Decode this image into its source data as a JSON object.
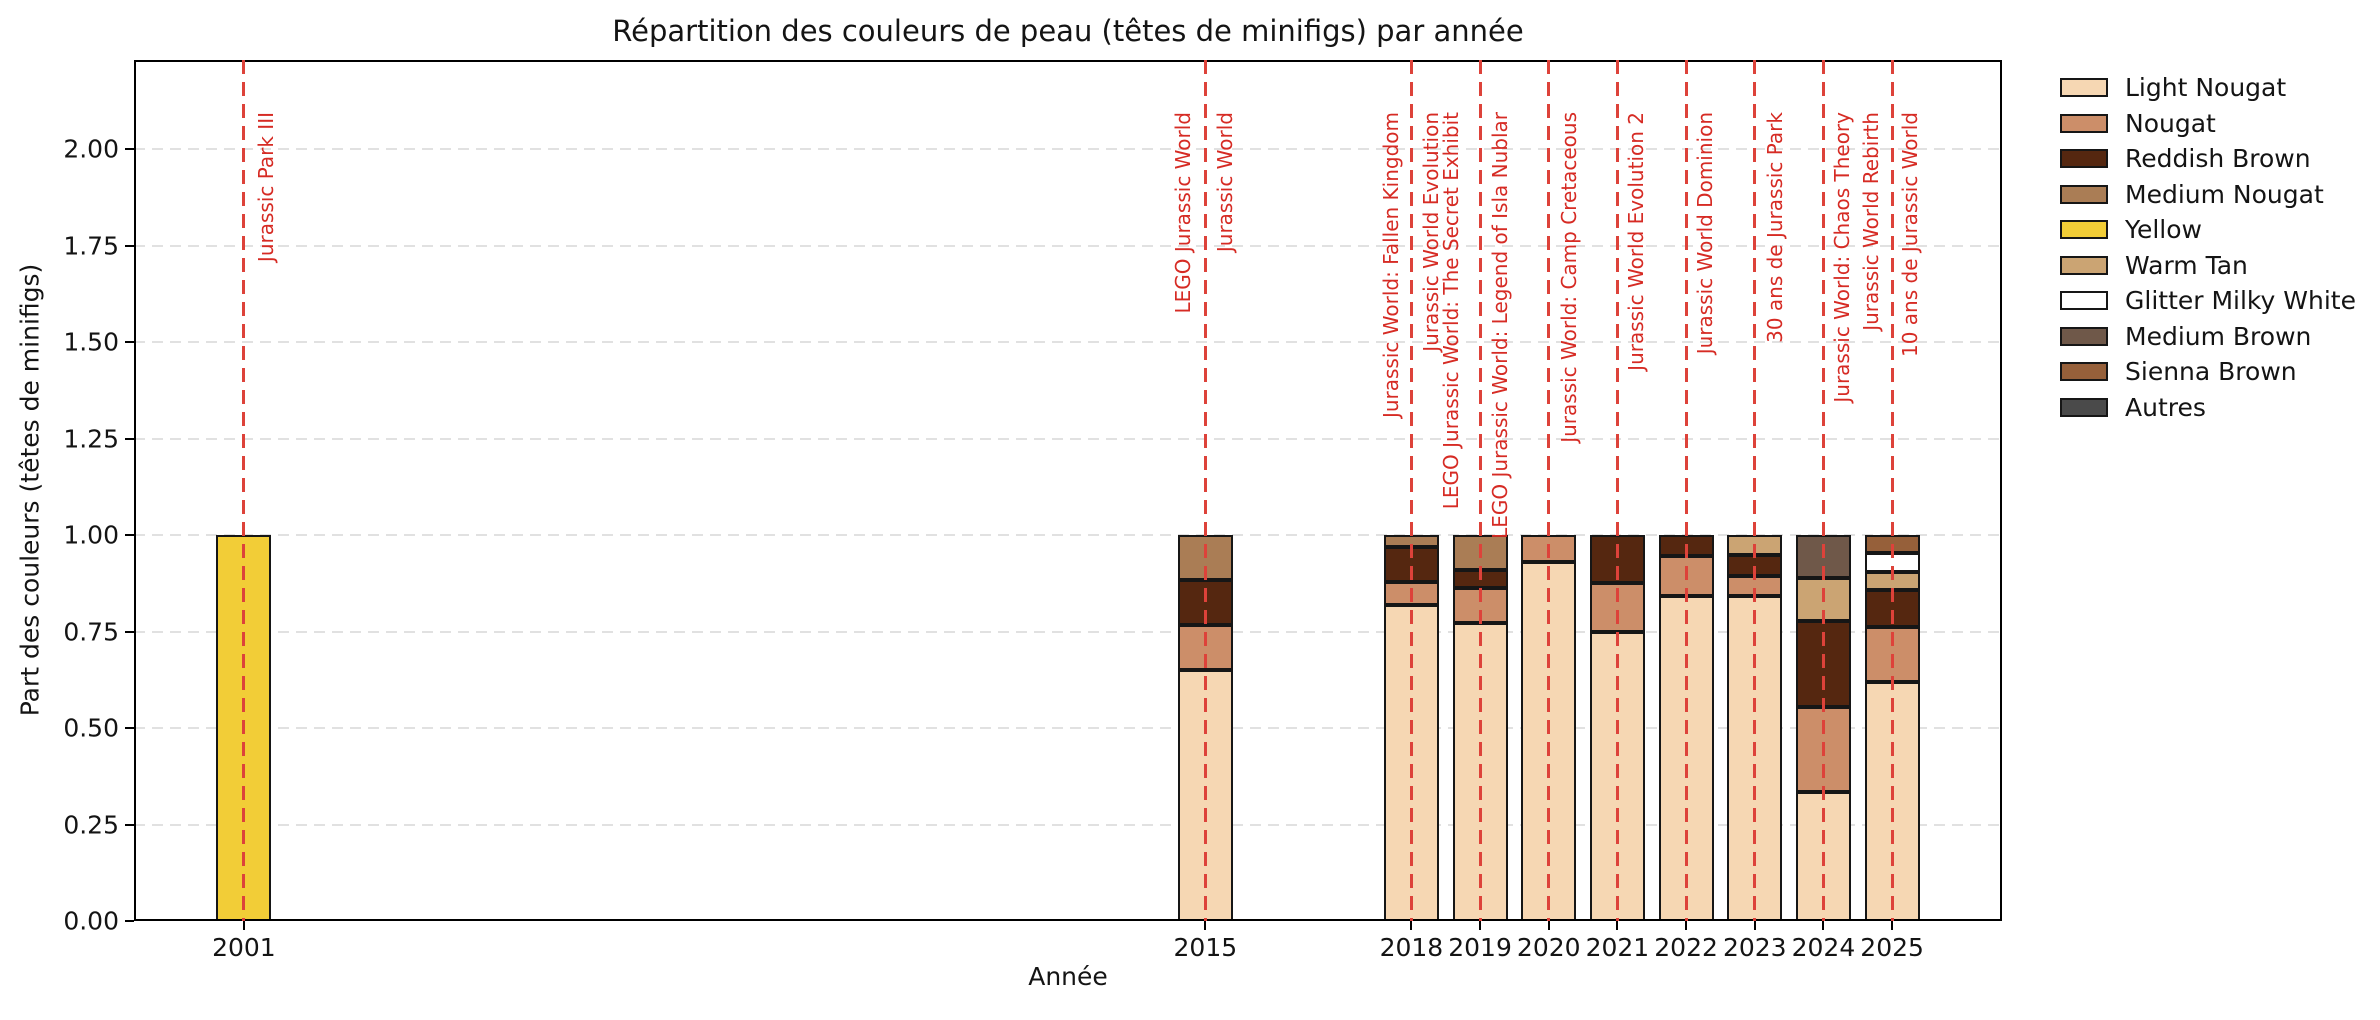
{
  "chart_data": {
    "type": "bar",
    "stacked": true,
    "title": "Répartition des couleurs de peau (têtes de minifigs) par année",
    "xlabel": "Année",
    "ylabel": "Part des couleurs (têtes de minifigs)",
    "categories": [
      "2001",
      "2015",
      "2018",
      "2019",
      "2020",
      "2021",
      "2022",
      "2023",
      "2024",
      "2025"
    ],
    "category_years": [
      2001,
      2015,
      2018,
      2019,
      2020,
      2021,
      2022,
      2023,
      2024,
      2025
    ],
    "xlim": [
      1999.4,
      2026.6
    ],
    "ylim": [
      0,
      2.231
    ],
    "yticks": [
      "0.00",
      "0.25",
      "0.50",
      "0.75",
      "1.00",
      "1.25",
      "1.50",
      "1.75",
      "2.00"
    ],
    "ytick_values": [
      0,
      0.25,
      0.5,
      0.75,
      1.0,
      1.25,
      1.5,
      1.75,
      2.0
    ],
    "bar_width_years": 0.8,
    "grid": "horizontal dashed",
    "legend_position": "outside-right",
    "series": [
      {
        "name": "Light Nougat",
        "color": "#F6D7B3",
        "values": [
          0,
          0.65,
          0.818,
          0.773,
          0.929,
          0.75,
          0.842,
          0.842,
          0.333,
          0.619
        ]
      },
      {
        "name": "Nougat",
        "color": "#CC8E69",
        "values": [
          0,
          0.117,
          0.061,
          0.091,
          0.071,
          0.125,
          0.105,
          0.053,
          0.222,
          0.143
        ]
      },
      {
        "name": "Reddish Brown",
        "color": "#552710",
        "values": [
          0,
          0.116,
          0.091,
          0.045,
          0,
          0.125,
          0.053,
          0.053,
          0.222,
          0.095
        ]
      },
      {
        "name": "Medium Nougat",
        "color": "#AA7D55",
        "values": [
          0,
          0.117,
          0.03,
          0.091,
          0,
          0,
          0,
          0,
          0,
          0
        ]
      },
      {
        "name": "Yellow",
        "color": "#F2CD37",
        "values": [
          1.0,
          0,
          0,
          0,
          0,
          0,
          0,
          0,
          0,
          0
        ]
      },
      {
        "name": "Warm Tan",
        "color": "#CBA473",
        "values": [
          0,
          0,
          0,
          0,
          0,
          0,
          0,
          0.052,
          0.111,
          0.048
        ]
      },
      {
        "name": "Glitter Milky White",
        "color": "#FFFFFF",
        "values": [
          0,
          0,
          0,
          0,
          0,
          0,
          0,
          0,
          0,
          0.048
        ]
      },
      {
        "name": "Medium Brown",
        "color": "#6F5849",
        "values": [
          0,
          0,
          0,
          0,
          0,
          0,
          0,
          0,
          0.112,
          0
        ]
      },
      {
        "name": "Sienna Brown",
        "color": "#96603A",
        "values": [
          0,
          0,
          0,
          0,
          0,
          0,
          0,
          0,
          0,
          0.047
        ]
      },
      {
        "name": "Autres",
        "color": "#4A4A4A",
        "values": [
          0,
          0,
          0,
          0,
          0,
          0,
          0,
          0,
          0,
          0
        ]
      }
    ],
    "event_lines": [
      {
        "year": 2001,
        "label": "Jurassic Park III",
        "label_dx": 22
      },
      {
        "year": 2015,
        "label": "LEGO Jurassic World",
        "label_dx": -22
      },
      {
        "year": 2015,
        "label": "Jurassic World",
        "label_dx": 20
      },
      {
        "year": 2018,
        "label": "Jurassic World: Fallen Kingdom",
        "label_dx": -20
      },
      {
        "year": 2018,
        "label": "Jurassic World Evolution",
        "label_dx": 20
      },
      {
        "year": 2018,
        "label": "LEGO Jurassic World: The Secret Exhibit",
        "label_dx": 40
      },
      {
        "year": 2019,
        "label": "LEGO Jurassic World: Legend of Isla Nublar",
        "label_dx": 20
      },
      {
        "year": 2020,
        "label": "Jurassic World: Camp Cretaceous",
        "label_dx": 20
      },
      {
        "year": 2021,
        "label": "Jurassic World Evolution 2",
        "label_dx": 19
      },
      {
        "year": 2022,
        "label": "Jurassic World Dominion",
        "label_dx": 19
      },
      {
        "year": 2023,
        "label": "30 ans de Jurassic Park",
        "label_dx": 20
      },
      {
        "year": 2024,
        "label": "Jurassic World: Chaos Theory",
        "label_dx": 19
      },
      {
        "year": 2025,
        "label": "Jurassic World Rebirth",
        "label_dx": -21
      },
      {
        "year": 2025,
        "label": "10 ans de Jurassic World",
        "label_dx": 18
      }
    ],
    "colors": {
      "event_line": "#DD423A",
      "event_label": "#D62B24",
      "grid": "#E1E1E1",
      "bar_edge": "#161616",
      "axis": "#000000",
      "text": "#141414",
      "background": "#FFFFFF"
    }
  }
}
